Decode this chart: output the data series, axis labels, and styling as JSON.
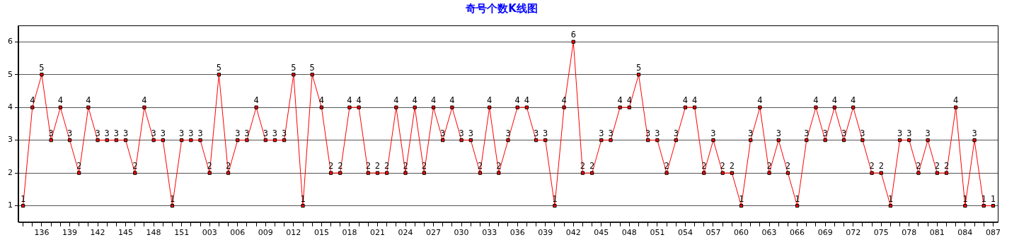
{
  "chart_data": {
    "type": "line",
    "title": "奇号个数K线图",
    "categories": [
      null,
      null,
      "136",
      null,
      null,
      "139",
      null,
      null,
      "142",
      null,
      null,
      "145",
      null,
      null,
      "148",
      null,
      null,
      "151",
      null,
      null,
      "003",
      null,
      null,
      "006",
      null,
      null,
      "009",
      null,
      null,
      "012",
      null,
      null,
      "015",
      null,
      null,
      "018",
      null,
      null,
      "021",
      null,
      null,
      "024",
      null,
      null,
      "027",
      null,
      null,
      "030",
      null,
      null,
      "033",
      null,
      null,
      "036",
      null,
      null,
      "039",
      null,
      null,
      "042",
      null,
      null,
      "045",
      null,
      null,
      "048",
      null,
      null,
      "051",
      null,
      null,
      "054",
      null,
      null,
      "057",
      null,
      null,
      "060",
      null,
      null,
      "063",
      null,
      null,
      "066",
      null,
      null,
      "069",
      null,
      null,
      "072",
      null,
      null,
      "075",
      null,
      null,
      "078",
      null,
      null,
      "081",
      null,
      null,
      "084",
      null,
      null,
      "087"
    ],
    "series": [
      {
        "color": "#ff0000",
        "values": [
          1,
          4,
          5,
          3,
          4,
          3,
          2,
          4,
          3,
          3,
          3,
          3,
          2,
          4,
          3,
          3,
          1,
          3,
          3,
          3,
          2,
          5,
          2,
          3,
          3,
          4,
          3,
          3,
          3,
          5,
          1,
          5,
          4,
          2,
          2,
          4,
          4,
          2,
          2,
          2,
          4,
          2,
          4,
          2,
          4,
          3,
          4,
          3,
          3,
          2,
          4,
          2,
          3,
          4,
          4,
          3,
          3,
          1,
          4,
          6,
          2,
          2,
          3,
          3,
          4,
          4,
          5,
          3,
          3,
          2,
          3,
          4,
          4,
          2,
          3,
          2,
          2,
          1,
          3,
          4,
          2,
          3,
          2,
          1,
          3,
          4,
          3,
          4,
          3,
          4,
          3,
          2,
          2,
          1,
          3,
          3,
          2,
          3,
          2,
          2,
          4,
          1,
          3,
          1,
          1
        ]
      }
    ],
    "ylim": [
      0.5,
      6.5
    ],
    "yticks": [
      1,
      2,
      3,
      4,
      5,
      6
    ],
    "grid": "y",
    "legend": false,
    "marker": "square",
    "line_style": "solid",
    "data_labels": true
  }
}
